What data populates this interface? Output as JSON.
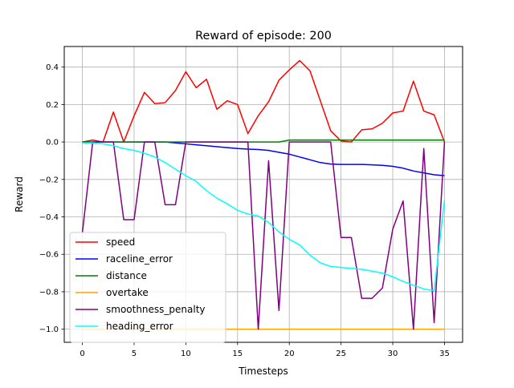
{
  "chart_data": {
    "type": "line",
    "title": "Reward of episode: 200",
    "xlabel": "Timesteps",
    "ylabel": "Reward",
    "xlim": [
      -1.75,
      36.75
    ],
    "ylim": [
      -1.07,
      0.51
    ],
    "xticks": [
      0,
      5,
      10,
      15,
      20,
      25,
      30,
      35
    ],
    "yticks": [
      -1.0,
      -0.8,
      -0.6,
      -0.4,
      -0.2,
      0.0,
      0.2,
      0.4
    ],
    "ytick_labels": [
      "−1.0",
      "−0.8",
      "−0.6",
      "−0.4",
      "−0.2",
      "0.0",
      "0.2",
      "0.4"
    ],
    "grid": true,
    "legend_position": "lower-left",
    "x": [
      0,
      1,
      2,
      3,
      4,
      5,
      6,
      7,
      8,
      9,
      10,
      11,
      12,
      13,
      14,
      15,
      16,
      17,
      18,
      19,
      20,
      21,
      22,
      23,
      24,
      25,
      26,
      27,
      28,
      29,
      30,
      31,
      32,
      33,
      34,
      35
    ],
    "series": [
      {
        "name": "speed",
        "color": "#ff0000",
        "values": [
          0.0,
          0.01,
          0.0,
          0.16,
          0.0,
          0.14,
          0.265,
          0.205,
          0.21,
          0.275,
          0.375,
          0.29,
          0.335,
          0.175,
          0.22,
          0.2,
          0.045,
          0.14,
          0.215,
          0.33,
          0.385,
          0.435,
          0.38,
          0.22,
          0.06,
          0.005,
          0.0,
          0.065,
          0.07,
          0.1,
          0.155,
          0.165,
          0.325,
          0.165,
          0.145,
          0.0
        ]
      },
      {
        "name": "raceline_error",
        "color": "#0000ff",
        "values": [
          0.0,
          0.0,
          0.0,
          0.0,
          0.0,
          0.0,
          0.0,
          0.0,
          0.0,
          -0.005,
          -0.01,
          -0.015,
          -0.02,
          -0.025,
          -0.03,
          -0.035,
          -0.038,
          -0.04,
          -0.045,
          -0.055,
          -0.065,
          -0.08,
          -0.095,
          -0.11,
          -0.118,
          -0.12,
          -0.12,
          -0.12,
          -0.122,
          -0.125,
          -0.13,
          -0.14,
          -0.155,
          -0.165,
          -0.175,
          -0.18
        ]
      },
      {
        "name": "distance",
        "color": "#008000",
        "values": [
          0.0,
          0.0,
          0.0,
          0.0,
          0.0,
          0.0,
          0.0,
          0.0,
          0.0,
          0.0,
          0.0,
          0.0,
          0.0,
          0.0,
          0.0,
          0.0,
          0.0,
          0.0,
          0.0,
          0.0,
          0.01,
          0.01,
          0.01,
          0.01,
          0.01,
          0.01,
          0.01,
          0.01,
          0.01,
          0.01,
          0.01,
          0.01,
          0.01,
          0.01,
          0.01,
          0.01
        ]
      },
      {
        "name": "overtake",
        "color": "#ffa500",
        "values": [
          -1.0,
          -1.0,
          -1.0,
          -1.0,
          -1.0,
          -1.0,
          -1.0,
          -1.0,
          -1.0,
          -1.0,
          -1.0,
          -1.0,
          -1.0,
          -1.0,
          -1.0,
          -1.0,
          -1.0,
          -1.0,
          -1.0,
          -1.0,
          -1.0,
          -1.0,
          -1.0,
          -1.0,
          -1.0,
          -1.0,
          -1.0,
          -1.0,
          -1.0,
          -1.0,
          -1.0,
          -1.0,
          -1.0,
          -1.0,
          -1.0,
          -1.0
        ]
      },
      {
        "name": "smoothness_penalty",
        "color": "#800080",
        "values": [
          -0.485,
          0.0,
          0.0,
          0.0,
          -0.415,
          -0.415,
          0.0,
          0.0,
          -0.335,
          -0.335,
          0.0,
          0.0,
          0.0,
          0.0,
          0.0,
          0.0,
          0.0,
          -1.0,
          -0.1,
          -0.9,
          0.0,
          0.0,
          0.0,
          0.0,
          0.0,
          -0.51,
          -0.51,
          -0.835,
          -0.835,
          -0.78,
          -0.465,
          -0.315,
          -1.0,
          -0.035,
          -0.965,
          0.0
        ]
      },
      {
        "name": "heading_error",
        "color": "#00ffff",
        "values": [
          -0.005,
          -0.005,
          -0.01,
          -0.02,
          -0.035,
          -0.045,
          -0.06,
          -0.08,
          -0.11,
          -0.145,
          -0.18,
          -0.21,
          -0.26,
          -0.3,
          -0.33,
          -0.365,
          -0.385,
          -0.395,
          -0.43,
          -0.48,
          -0.52,
          -0.55,
          -0.605,
          -0.645,
          -0.665,
          -0.67,
          -0.675,
          -0.68,
          -0.69,
          -0.7,
          -0.72,
          -0.745,
          -0.765,
          -0.785,
          -0.795,
          -0.31
        ]
      }
    ]
  }
}
